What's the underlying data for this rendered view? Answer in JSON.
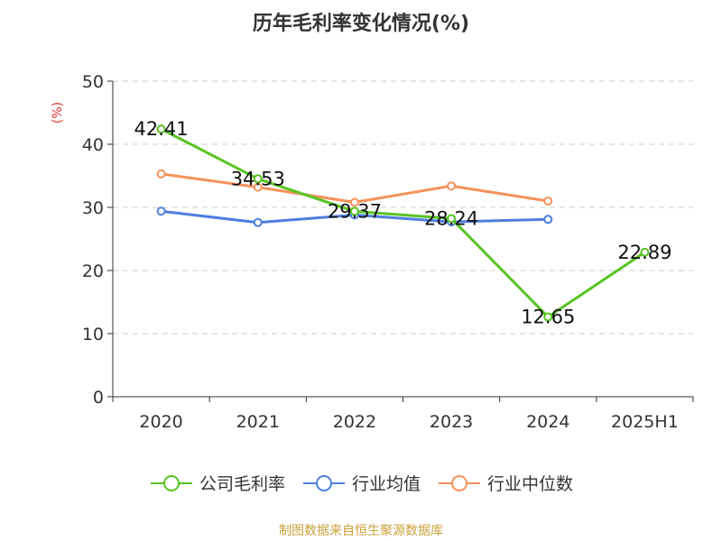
{
  "source_note": "制图数据来自恒生聚源数据库",
  "colors": {
    "company": "#58c322",
    "industry_avg": "#4d7fe0",
    "industry_median": "#f5915a",
    "unit": "#e8342f",
    "source": "#c9a13b",
    "axis": "#333333",
    "grid": "#cccccc"
  },
  "chart_data": {
    "type": "line",
    "title": "历年毛利率变化情况(%)",
    "unit_label": "(%)",
    "categories": [
      "2020",
      "2021",
      "2022",
      "2023",
      "2024",
      "2025H1"
    ],
    "y_ticks": [
      "0",
      "10",
      "20",
      "30",
      "40",
      "50"
    ],
    "ylim": [
      0,
      50
    ],
    "grid": true,
    "legend_position": "bottom",
    "series": [
      {
        "name": "公司毛利率",
        "color_key": "company",
        "values": [
          42.41,
          34.53,
          29.37,
          28.24,
          12.65,
          22.89
        ],
        "labels": [
          "42.41",
          "34.53",
          "29.37",
          "28.24",
          "12.65",
          "22.89"
        ]
      },
      {
        "name": "行业均值",
        "color_key": "industry_avg",
        "values": [
          29.4,
          27.6,
          28.8,
          27.7,
          28.1,
          null
        ],
        "labels": []
      },
      {
        "name": "行业中位数",
        "color_key": "industry_median",
        "values": [
          35.3,
          33.2,
          30.8,
          33.4,
          31.0,
          null
        ],
        "labels": []
      }
    ]
  }
}
